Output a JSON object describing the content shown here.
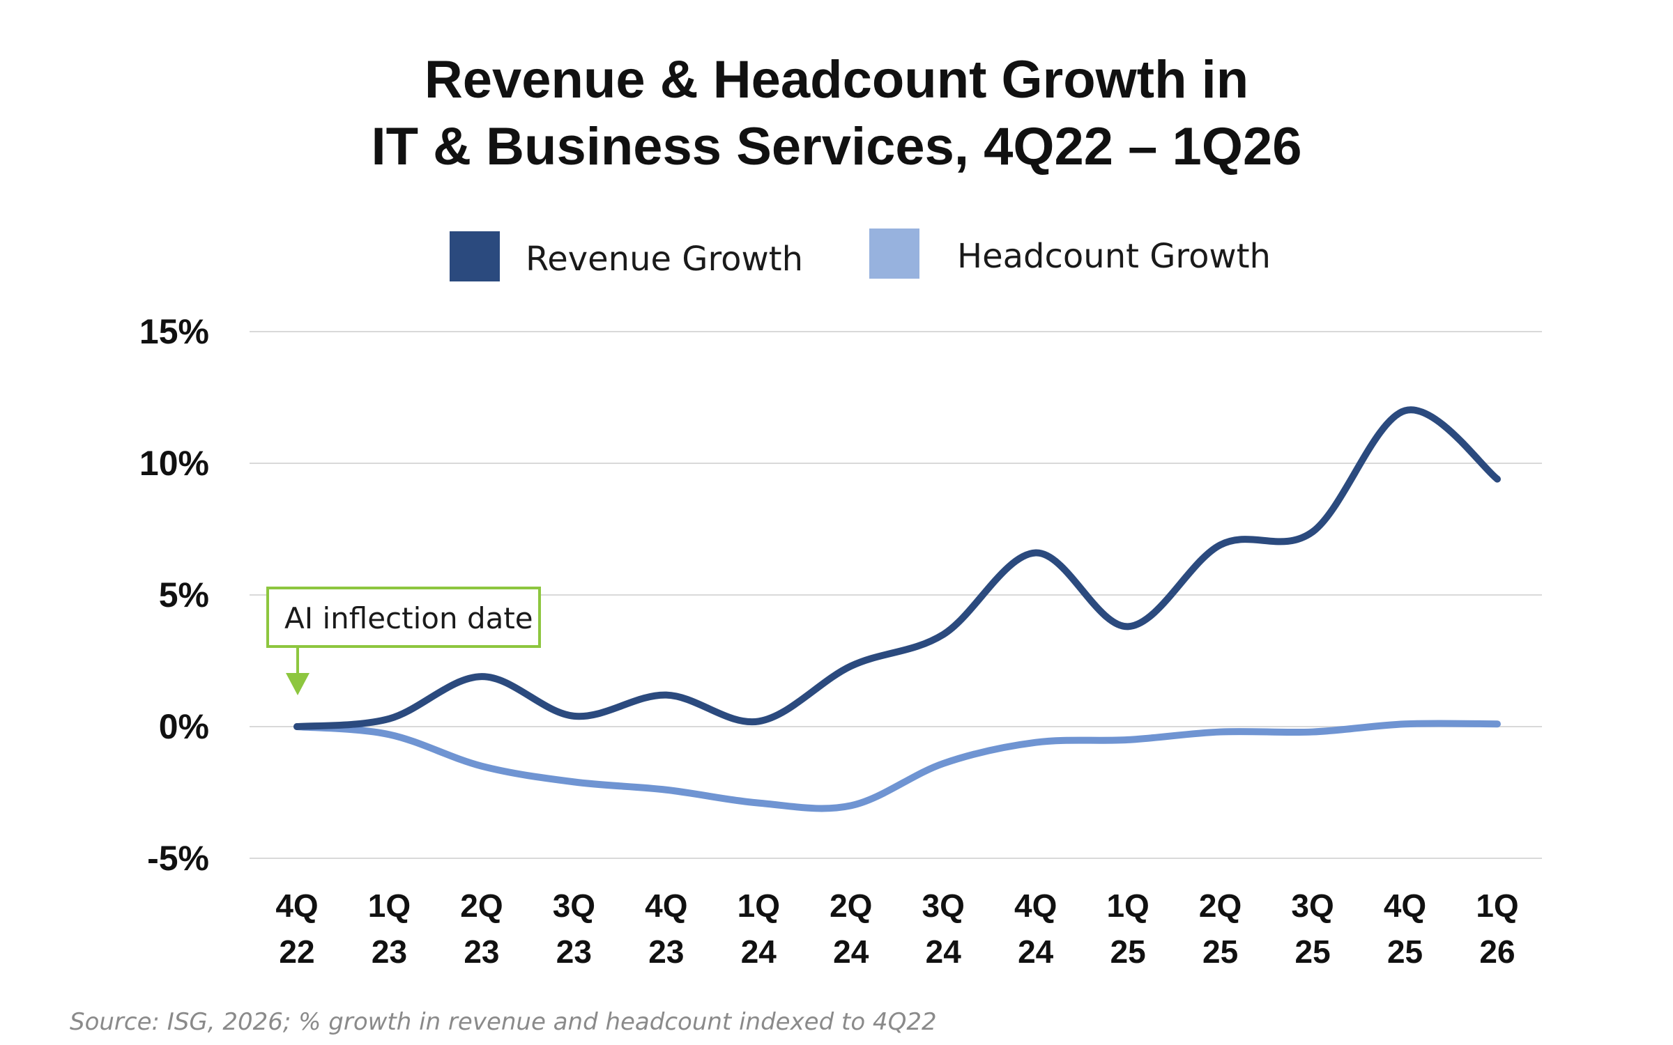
{
  "chart_data": {
    "type": "line",
    "title": [
      "Revenue & Headcount Growth in",
      "IT & Business Services, 4Q22 – 1Q26"
    ],
    "categories": [
      [
        "4Q",
        "22"
      ],
      [
        "1Q",
        "23"
      ],
      [
        "2Q",
        "23"
      ],
      [
        "3Q",
        "23"
      ],
      [
        "4Q",
        "23"
      ],
      [
        "1Q",
        "24"
      ],
      [
        "2Q",
        "24"
      ],
      [
        "3Q",
        "24"
      ],
      [
        "4Q",
        "24"
      ],
      [
        "1Q",
        "25"
      ],
      [
        "2Q",
        "25"
      ],
      [
        "3Q",
        "25"
      ],
      [
        "4Q",
        "25"
      ],
      [
        "1Q",
        "26"
      ]
    ],
    "series": [
      {
        "name": "Revenue Growth",
        "color": "#2b4a7e",
        "values": [
          0.0,
          0.3,
          1.9,
          0.4,
          1.2,
          0.2,
          2.3,
          3.5,
          6.6,
          3.8,
          6.9,
          7.4,
          12.0,
          9.4
        ]
      },
      {
        "name": "Headcount Growth",
        "color": "#6f94d2",
        "legend_color": "#97b2de",
        "values": [
          0.0,
          -0.3,
          -1.5,
          -2.1,
          -2.4,
          -2.9,
          -3.0,
          -1.4,
          -0.6,
          -0.5,
          -0.2,
          -0.2,
          0.1,
          0.1
        ]
      }
    ],
    "ylim": [
      -5,
      15
    ],
    "yticks": [
      15,
      10,
      5,
      0,
      -5
    ],
    "ytick_labels": [
      "15%",
      "10%",
      "5%",
      "0%",
      "-5%"
    ],
    "grid": true,
    "legend_position": "top-center",
    "annotation": {
      "text": "AI inflection date",
      "category_index": 0,
      "color": "#8dc63f"
    },
    "source": "Source: ISG, 2026; % growth in revenue and headcount indexed to 4Q22"
  }
}
